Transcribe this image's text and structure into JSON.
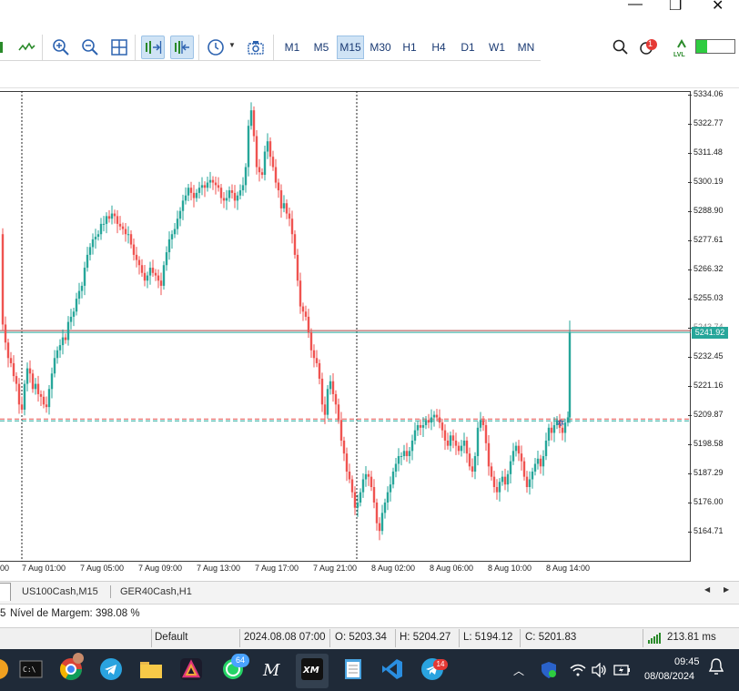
{
  "window": {
    "close_glyph": "✕",
    "maximize_glyph": "❐",
    "minimize_glyph": "—",
    "sub_minimize_glyph": "–",
    "sub_restore_glyph": "⧉",
    "sub_close_glyph": "✕"
  },
  "toolbar": {
    "timeframes": [
      "M1",
      "M5",
      "M15",
      "M30",
      "H1",
      "H4",
      "D1",
      "W1",
      "MN"
    ],
    "active_timeframe": "M15",
    "notification_count": "1",
    "lvl_label": "LVL"
  },
  "chart": {
    "y_ticks": [
      "5334.06",
      "5322.77",
      "5311.48",
      "5300.19",
      "5288.90",
      "5277.61",
      "5266.32",
      "5255.03",
      "5243.74",
      "5232.45",
      "5221.16",
      "5209.87",
      "5198.58",
      "5187.29",
      "5176.00",
      "5164.71"
    ],
    "x_ticks": [
      "00",
      "7 Aug 01:00",
      "7 Aug 05:00",
      "7 Aug 09:00",
      "7 Aug 13:00",
      "7 Aug 17:00",
      "7 Aug 21:00",
      "8 Aug 02:00",
      "8 Aug 06:00",
      "8 Aug 10:00",
      "8 Aug 14:00"
    ],
    "current_price": "5241.92",
    "colors": {
      "bull": "#26a69a",
      "bear": "#ef5350",
      "bid_line": "#26a69a",
      "ask_line": "#ef5350"
    }
  },
  "chart_data": {
    "type": "candlestick",
    "ylim": [
      5160.0,
      5334.06
    ],
    "last_price": 5241.92,
    "dashed_level": 5208.0,
    "close_path": [
      [
        0,
        5280
      ],
      [
        3,
        5245
      ],
      [
        6,
        5238
      ],
      [
        9,
        5232
      ],
      [
        12,
        5230
      ],
      [
        15,
        5225
      ],
      [
        18,
        5222
      ],
      [
        21,
        5214
      ],
      [
        24,
        5212
      ],
      [
        27,
        5222
      ],
      [
        30,
        5228
      ],
      [
        33,
        5226
      ],
      [
        36,
        5220
      ],
      [
        39,
        5222
      ],
      [
        42,
        5218
      ],
      [
        45,
        5217
      ],
      [
        48,
        5214
      ],
      [
        51,
        5213
      ],
      [
        54,
        5220
      ],
      [
        57,
        5226
      ],
      [
        60,
        5232
      ],
      [
        63,
        5235
      ],
      [
        66,
        5237
      ],
      [
        69,
        5240
      ],
      [
        72,
        5239
      ],
      [
        75,
        5246
      ],
      [
        78,
        5248
      ],
      [
        81,
        5250
      ],
      [
        84,
        5255
      ],
      [
        87,
        5258
      ],
      [
        90,
        5260
      ],
      [
        93,
        5267
      ],
      [
        96,
        5272
      ],
      [
        99,
        5275
      ],
      [
        102,
        5278
      ],
      [
        105,
        5279
      ],
      [
        108,
        5280
      ],
      [
        111,
        5284
      ],
      [
        114,
        5284
      ],
      [
        117,
        5287
      ],
      [
        120,
        5286
      ],
      [
        123,
        5288
      ],
      [
        126,
        5287
      ],
      [
        129,
        5284
      ],
      [
        132,
        5283
      ],
      [
        135,
        5282
      ],
      [
        138,
        5280
      ],
      [
        141,
        5280
      ],
      [
        144,
        5276
      ],
      [
        147,
        5272
      ],
      [
        150,
        5270
      ],
      [
        153,
        5268
      ],
      [
        156,
        5265
      ],
      [
        159,
        5262
      ],
      [
        162,
        5264
      ],
      [
        165,
        5267
      ],
      [
        168,
        5265
      ],
      [
        171,
        5264
      ],
      [
        174,
        5262
      ],
      [
        177,
        5260
      ],
      [
        180,
        5268
      ],
      [
        183,
        5273
      ],
      [
        186,
        5278
      ],
      [
        189,
        5280
      ],
      [
        192,
        5282
      ],
      [
        195,
        5286
      ],
      [
        198,
        5289
      ],
      [
        201,
        5293
      ],
      [
        204,
        5295
      ],
      [
        207,
        5298
      ],
      [
        210,
        5296
      ],
      [
        213,
        5294
      ],
      [
        216,
        5296
      ],
      [
        219,
        5298
      ],
      [
        222,
        5299
      ],
      [
        225,
        5298
      ],
      [
        228,
        5300
      ],
      [
        231,
        5301
      ],
      [
        234,
        5300
      ],
      [
        237,
        5299
      ],
      [
        240,
        5298
      ],
      [
        243,
        5294
      ],
      [
        246,
        5293
      ],
      [
        249,
        5294
      ],
      [
        252,
        5297
      ],
      [
        255,
        5296
      ],
      [
        258,
        5293
      ],
      [
        261,
        5295
      ],
      [
        264,
        5297
      ],
      [
        267,
        5299
      ],
      [
        270,
        5306
      ],
      [
        273,
        5322
      ],
      [
        276,
        5328
      ],
      [
        279,
        5318
      ],
      [
        282,
        5306
      ],
      [
        285,
        5304
      ],
      [
        288,
        5303
      ],
      [
        291,
        5312
      ],
      [
        294,
        5316
      ],
      [
        297,
        5310
      ],
      [
        300,
        5306
      ],
      [
        303,
        5300
      ],
      [
        306,
        5297
      ],
      [
        309,
        5290
      ],
      [
        312,
        5292
      ],
      [
        315,
        5288
      ],
      [
        318,
        5286
      ],
      [
        321,
        5280
      ],
      [
        324,
        5272
      ],
      [
        327,
        5262
      ],
      [
        330,
        5252
      ],
      [
        333,
        5250
      ],
      [
        336,
        5248
      ],
      [
        339,
        5242
      ],
      [
        342,
        5235
      ],
      [
        345,
        5232
      ],
      [
        348,
        5230
      ],
      [
        351,
        5224
      ],
      [
        354,
        5214
      ],
      [
        357,
        5210
      ],
      [
        360,
        5220
      ],
      [
        363,
        5223
      ],
      [
        366,
        5218
      ],
      [
        369,
        5214
      ],
      [
        372,
        5208
      ],
      [
        375,
        5200
      ],
      [
        378,
        5195
      ],
      [
        381,
        5188
      ],
      [
        384,
        5185
      ],
      [
        387,
        5180
      ],
      [
        390,
        5174
      ],
      [
        393,
        5176
      ],
      [
        396,
        5180
      ],
      [
        399,
        5185
      ],
      [
        402,
        5187
      ],
      [
        405,
        5186
      ],
      [
        408,
        5182
      ],
      [
        411,
        5176
      ],
      [
        414,
        5168
      ],
      [
        417,
        5165
      ],
      [
        420,
        5172
      ],
      [
        423,
        5176
      ],
      [
        426,
        5180
      ],
      [
        429,
        5183
      ],
      [
        432,
        5188
      ],
      [
        435,
        5191
      ],
      [
        438,
        5194
      ],
      [
        441,
        5194
      ],
      [
        444,
        5196
      ],
      [
        447,
        5194
      ],
      [
        450,
        5196
      ],
      [
        453,
        5200
      ],
      [
        456,
        5204
      ],
      [
        459,
        5206
      ],
      [
        462,
        5205
      ],
      [
        465,
        5206
      ],
      [
        468,
        5208
      ],
      [
        471,
        5207
      ],
      [
        474,
        5209
      ],
      [
        477,
        5210
      ],
      [
        480,
        5209
      ],
      [
        483,
        5207
      ],
      [
        486,
        5204
      ],
      [
        489,
        5200
      ],
      [
        492,
        5198
      ],
      [
        495,
        5202
      ],
      [
        498,
        5200
      ],
      [
        501,
        5198
      ],
      [
        504,
        5196
      ],
      [
        507,
        5198
      ],
      [
        510,
        5200
      ],
      [
        513,
        5195
      ],
      [
        516,
        5190
      ],
      [
        519,
        5188
      ],
      [
        522,
        5194
      ],
      [
        525,
        5205
      ],
      [
        528,
        5208
      ],
      [
        531,
        5206
      ],
      [
        534,
        5199
      ],
      [
        537,
        5190
      ],
      [
        540,
        5186
      ],
      [
        543,
        5182
      ],
      [
        546,
        5180
      ],
      [
        549,
        5184
      ],
      [
        552,
        5186
      ],
      [
        555,
        5183
      ],
      [
        558,
        5187
      ],
      [
        561,
        5192
      ],
      [
        564,
        5196
      ],
      [
        567,
        5198
      ],
      [
        570,
        5195
      ],
      [
        573,
        5192
      ],
      [
        576,
        5186
      ],
      [
        579,
        5182
      ],
      [
        582,
        5185
      ],
      [
        585,
        5188
      ],
      [
        588,
        5191
      ],
      [
        591,
        5193
      ],
      [
        594,
        5190
      ],
      [
        597,
        5194
      ],
      [
        600,
        5200
      ],
      [
        603,
        5205
      ],
      [
        606,
        5203
      ],
      [
        609,
        5206
      ],
      [
        612,
        5208
      ],
      [
        615,
        5205
      ],
      [
        618,
        5203
      ],
      [
        621,
        5207
      ],
      [
        624,
        5209
      ],
      [
        626,
        5241.92
      ]
    ],
    "series": [
      {
        "values_from": "close_path"
      }
    ]
  },
  "tabs": {
    "items": [
      "US100Cash,M15",
      "GER40Cash,H1"
    ],
    "active": "US100Cash,M15"
  },
  "margin": {
    "prefix": "5",
    "label": "Nível de Margem: 398.08 %"
  },
  "status": {
    "profile": "Default",
    "datetime": "2024.08.08 07:00",
    "open": "O: 5203.34",
    "high": "H: 5204.27",
    "low": "L: 5194.12",
    "close": "C: 5201.83",
    "ping": "213.81 ms"
  },
  "taskbar": {
    "whatsapp_badge": "64",
    "telegram_badge": "14",
    "time": "09:45",
    "date": "08/08/2024"
  }
}
